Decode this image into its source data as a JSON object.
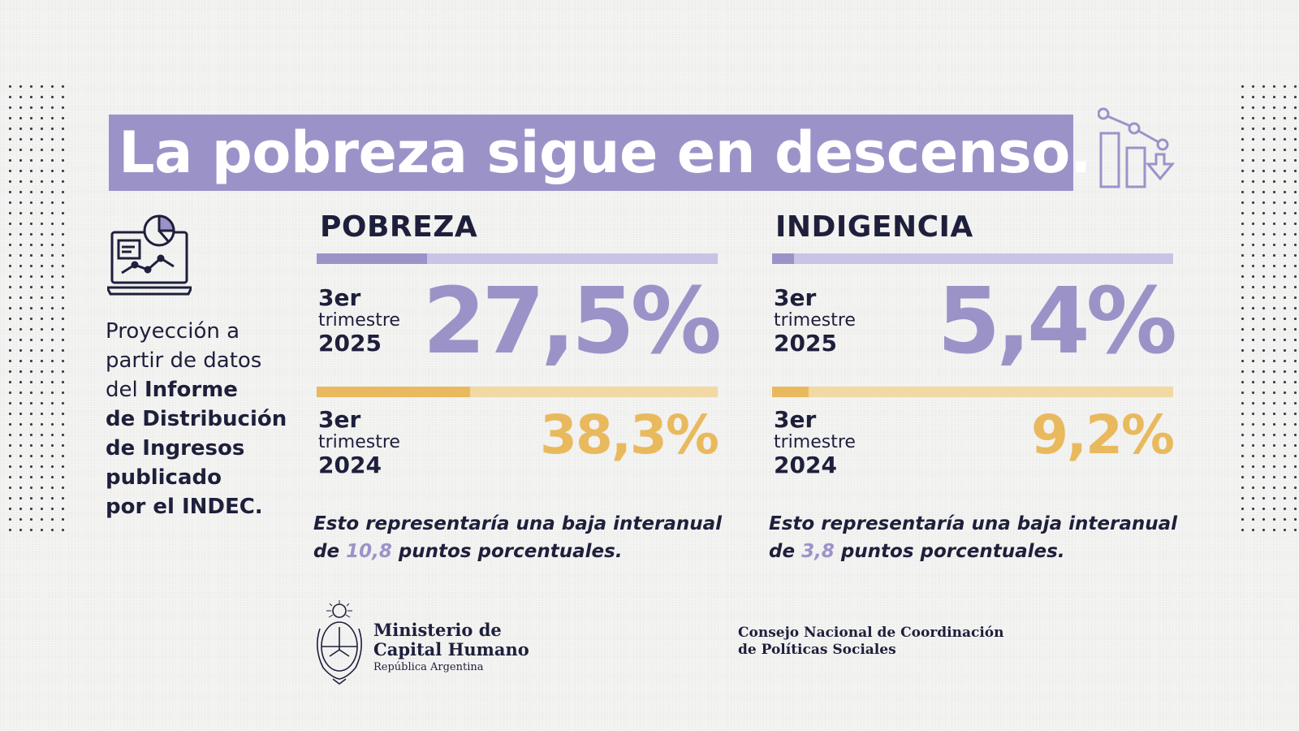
{
  "header": {
    "title": "La pobreza sigue en descenso."
  },
  "icons": {
    "title_icon": "declining-chart-icon",
    "side_icon": "laptop-report-icon",
    "seal": "argentina-coat-of-arms"
  },
  "note": {
    "line1": "Proyección a",
    "line2": "partir de datos",
    "line3_plain": "del ",
    "line3_bold": "Informe",
    "line4": "de Distribución",
    "line5": "de Ingresos",
    "line6": "publicado",
    "line7": "por el INDEC."
  },
  "pobreza": {
    "title": "POBREZA",
    "current": {
      "ordinal": "3er",
      "quarter": "trimestre",
      "year": "2025",
      "value": "27,5%",
      "share": 0.275
    },
    "previous": {
      "ordinal": "3er",
      "quarter": "trimestre",
      "year": "2024",
      "value": "38,3%",
      "share": 0.383
    },
    "drop_prefix": "Esto representaría una baja interanual de ",
    "drop_value": "10,8",
    "drop_suffix": " puntos porcentuales."
  },
  "indigencia": {
    "title": "INDIGENCIA",
    "current": {
      "ordinal": "3er",
      "quarter": "trimestre",
      "year": "2025",
      "value": "5,4%",
      "share": 0.054
    },
    "previous": {
      "ordinal": "3er",
      "quarter": "trimestre",
      "year": "2024",
      "value": "9,2%",
      "share": 0.092
    },
    "drop_prefix": "Esto representaría una baja interanual de ",
    "drop_value": "3,8",
    "drop_suffix": " puntos porcentuales."
  },
  "footer": {
    "ministry_line1": "Ministerio de",
    "ministry_line2": "Capital Humano",
    "ministry_line3": "República Argentina",
    "council_line1": "Consejo Nacional de Coordinación",
    "council_line2": "de Políticas Sociales"
  },
  "colors": {
    "purple": "#9b93c8",
    "purple_light": "#c9c3e5",
    "yellow": "#e9b95d",
    "yellow_light": "#f2d9a3",
    "navy": "#1e1f3b"
  }
}
